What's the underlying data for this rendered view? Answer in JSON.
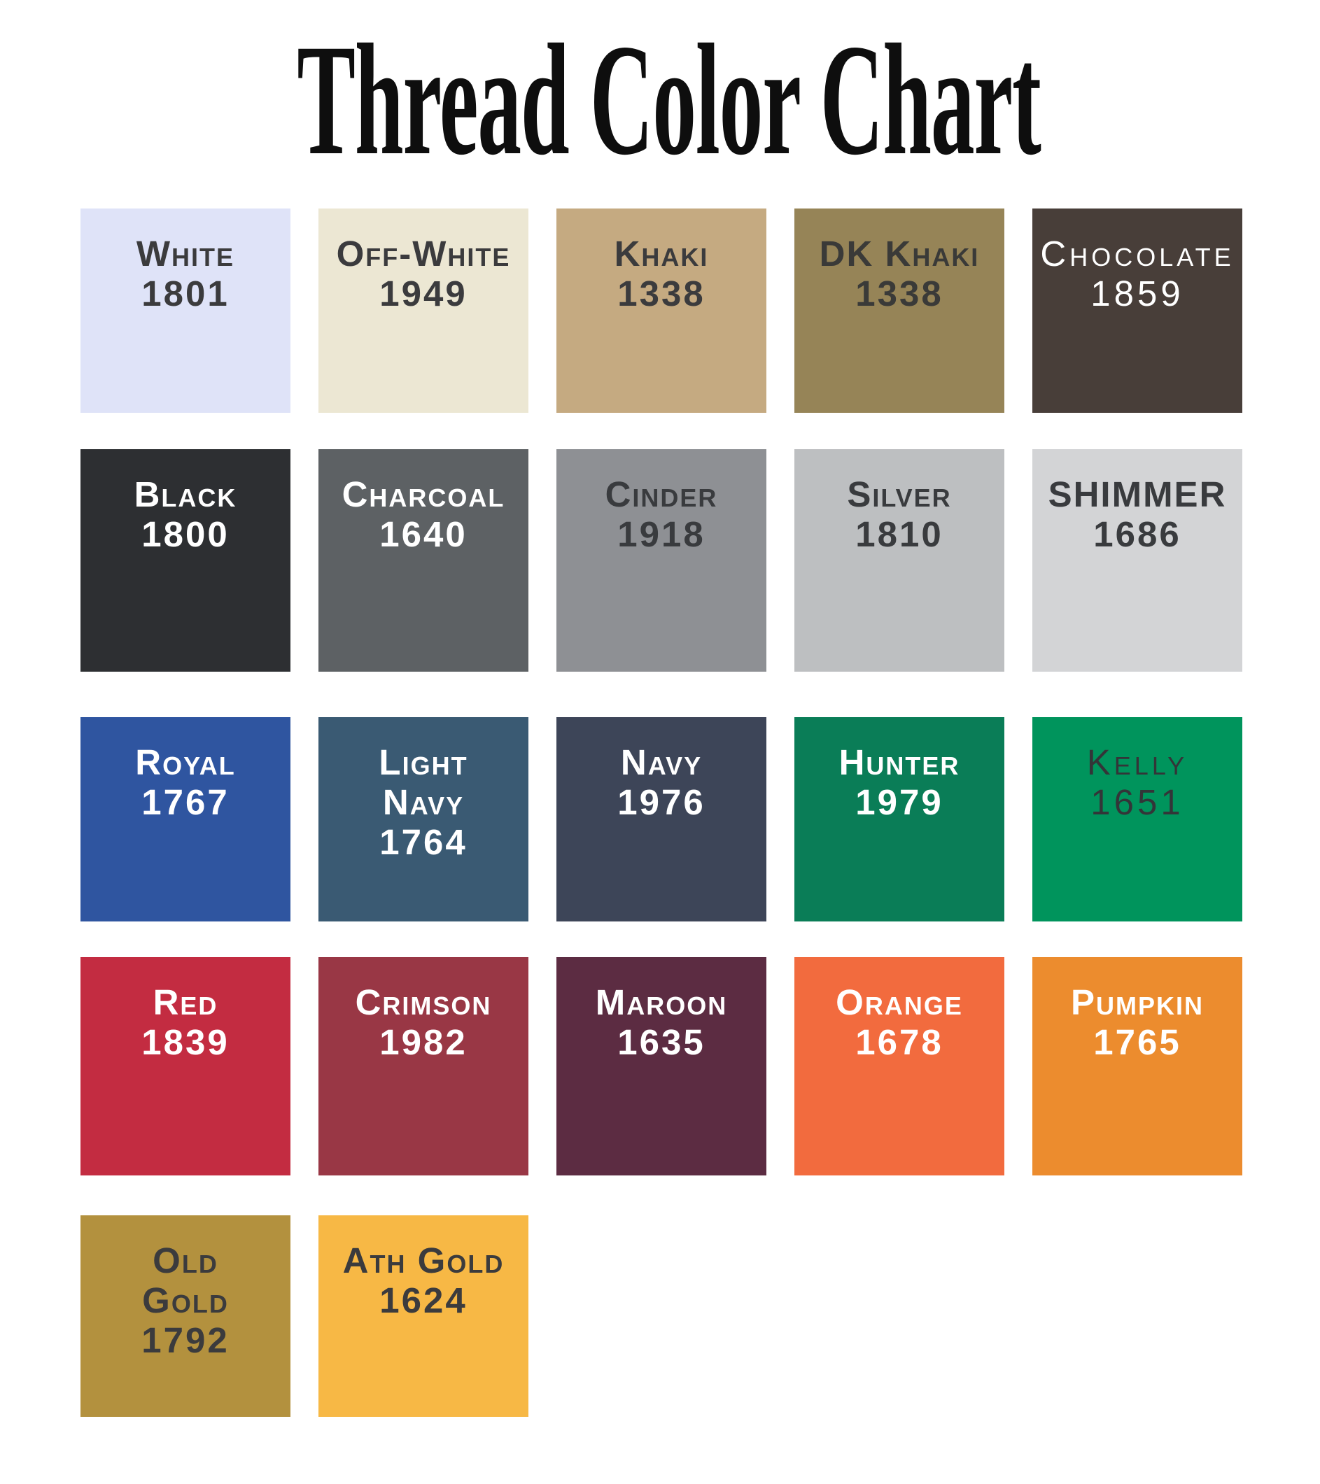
{
  "title": "Thread Color Chart",
  "page_bg": "#ffffff",
  "title_color": "#0e0e0e",
  "rows": [
    {
      "items": [
        {
          "label": "White",
          "code": "1801",
          "bg": "#dfe3f8",
          "fg": "#3b3b3d",
          "variant": "normal"
        },
        {
          "label": "Off-White",
          "code": "1949",
          "bg": "#ece7d3",
          "fg": "#3b3b3d",
          "variant": "normal"
        },
        {
          "label": "Khaki",
          "code": "1338",
          "bg": "#c5aa81",
          "fg": "#3b3b3d",
          "variant": "normal"
        },
        {
          "label": "DK  Khaki",
          "code": "1338",
          "bg": "#968457",
          "fg": "#3a3a38",
          "variant": "normal"
        },
        {
          "label": "Chocolate",
          "code": "1859",
          "bg": "#483e39",
          "fg": "#ffffff",
          "variant": "light"
        }
      ]
    },
    {
      "items": [
        {
          "label": "Black",
          "code": "1800",
          "bg": "#2d2f32",
          "fg": "#ffffff",
          "variant": "normal"
        },
        {
          "label": "Charcoal",
          "code": "1640",
          "bg": "#5d6164",
          "fg": "#ffffff",
          "variant": "normal"
        },
        {
          "label": "Cinder",
          "code": "1918",
          "bg": "#8e9094",
          "fg": "#393b3e",
          "variant": "normal"
        },
        {
          "label": "Silver",
          "code": "1810",
          "bg": "#bdbfc1",
          "fg": "#393b3e",
          "variant": "normal"
        },
        {
          "label": "SHIMMER",
          "code": "1686",
          "bg": "#d3d4d6",
          "fg": "#393b3e",
          "variant": "normal"
        }
      ]
    },
    {
      "items": [
        {
          "label": "Royal",
          "code": "1767",
          "bg": "#2f55a0",
          "fg": "#ffffff",
          "variant": "normal"
        },
        {
          "label": "Light\nNavy",
          "code": "1764",
          "bg": "#3a5a73",
          "fg": "#ffffff",
          "variant": "normal"
        },
        {
          "label": "Navy",
          "code": "1976",
          "bg": "#3d4558",
          "fg": "#ffffff",
          "variant": "normal"
        },
        {
          "label": "Hunter",
          "code": "1979",
          "bg": "#0a7d57",
          "fg": "#ffffff",
          "variant": "normal"
        },
        {
          "label": "Kelly",
          "code": "1651",
          "bg": "#00945c",
          "fg": "#333538",
          "variant": "light"
        }
      ]
    },
    {
      "items": [
        {
          "label": "Red",
          "code": "1839",
          "bg": "#c32c41",
          "fg": "#ffffff",
          "variant": "normal"
        },
        {
          "label": "Crimson",
          "code": "1982",
          "bg": "#993745",
          "fg": "#ffffff",
          "variant": "normal"
        },
        {
          "label": "Maroon",
          "code": "1635",
          "bg": "#5c2c42",
          "fg": "#ffffff",
          "variant": "normal"
        },
        {
          "label": "Orange",
          "code": "1678",
          "bg": "#f26b3e",
          "fg": "#ffffff",
          "variant": "normal"
        },
        {
          "label": "Pumpkin",
          "code": "1765",
          "bg": "#ec8c2e",
          "fg": "#ffffff",
          "variant": "normal"
        }
      ]
    },
    {
      "items": [
        {
          "label": "Old\nGold",
          "code": "1792",
          "bg": "#b3913e",
          "fg": "#3b3b3d",
          "variant": "normal"
        },
        {
          "label": "Ath Gold",
          "code": "1624",
          "bg": "#f7b845",
          "fg": "#3b3b3d",
          "variant": "normal"
        }
      ]
    }
  ]
}
